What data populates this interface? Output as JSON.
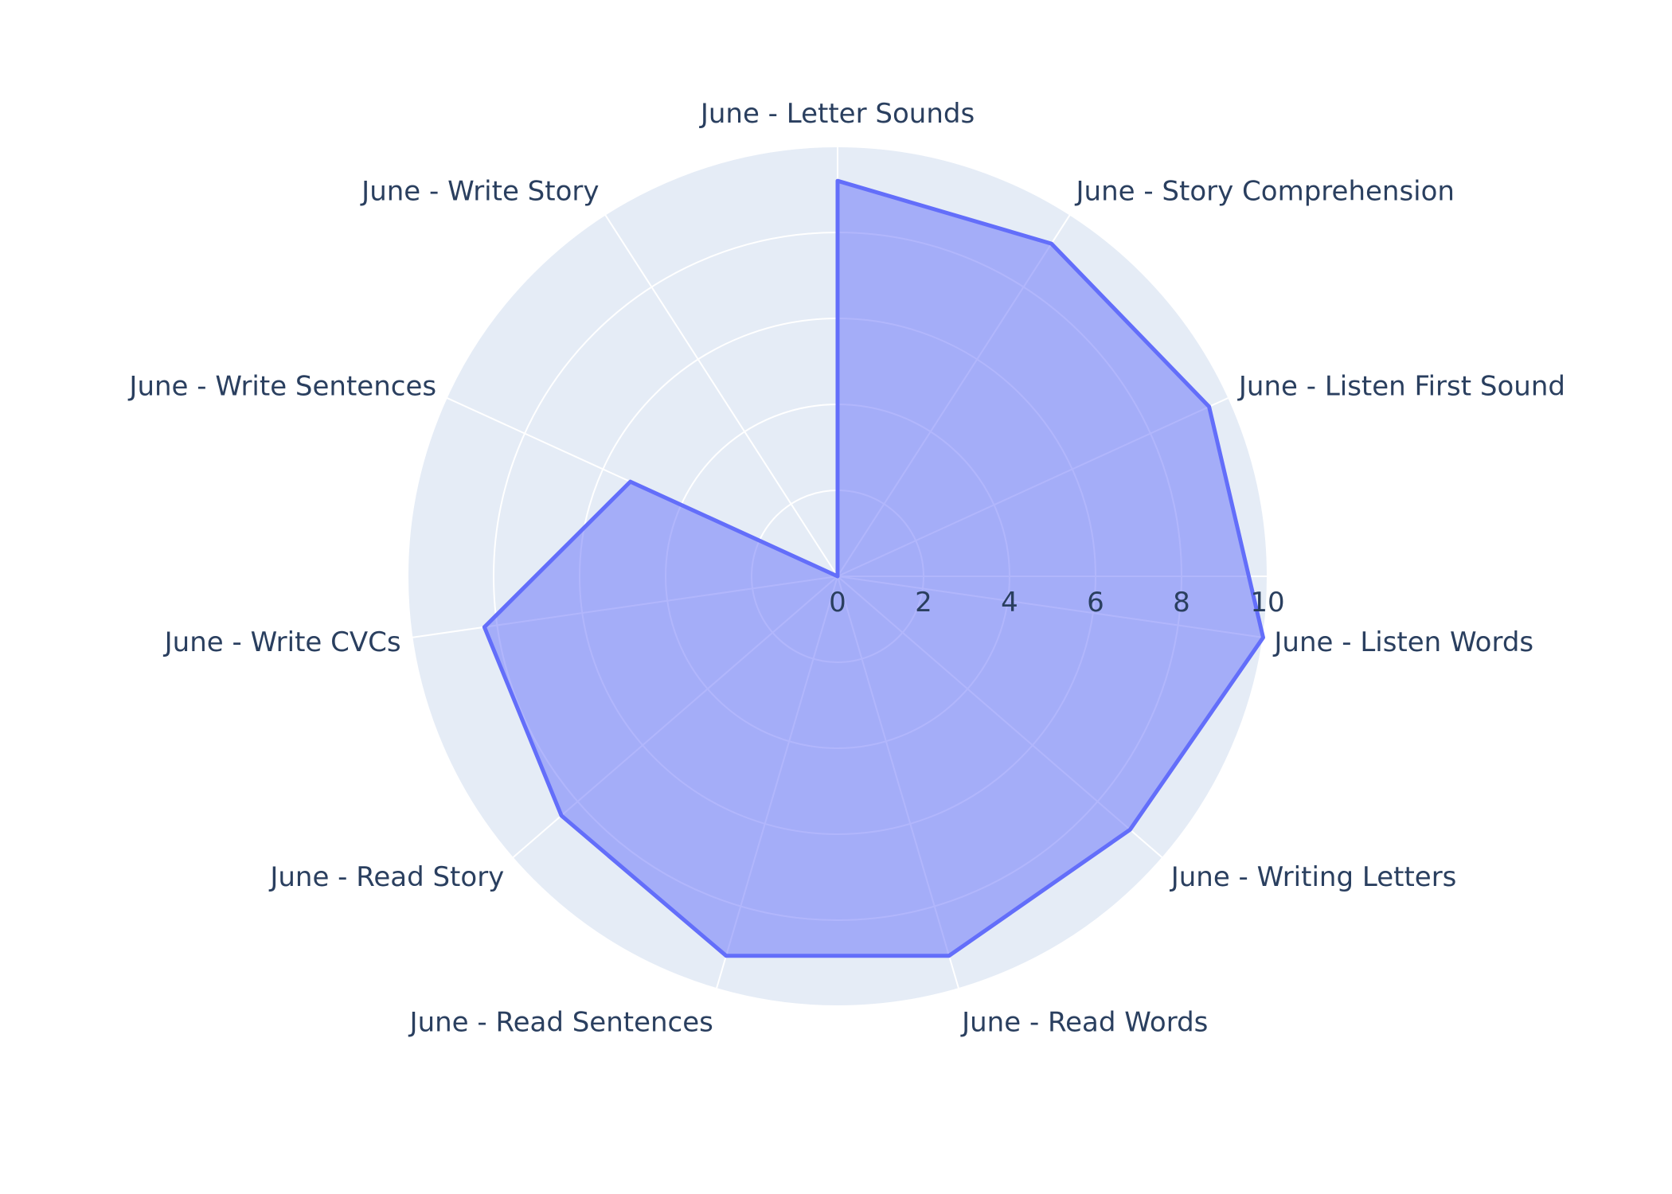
{
  "colors": {
    "plot_background": "#E5ECF6",
    "grid": "#ffffff",
    "trace_line": "#636EFA",
    "trace_fill": "rgba(99,110,250,0.5)",
    "text": "#2a3f5f"
  },
  "chart_data": {
    "type": "radar",
    "categories": [
      "June - Letter Sounds",
      "June - Story Comprehension",
      "June - Listen First Sound",
      "June - Listen Words",
      "June - Writing Letters",
      "June - Read Words",
      "June - Read Sentences",
      "June - Read Story",
      "June - Write CVCs",
      "June - Write Sentences",
      "June - Write Story"
    ],
    "values": [
      9.2,
      9.2,
      9.5,
      10,
      9,
      9.2,
      9.2,
      8.5,
      8.3,
      5.3,
      0
    ],
    "radial_range": [
      0,
      10
    ],
    "radial_ticks": [
      "0",
      "2",
      "4",
      "6",
      "8",
      "10"
    ],
    "grid": true,
    "direction": "clockwise",
    "start_angle": "top"
  }
}
